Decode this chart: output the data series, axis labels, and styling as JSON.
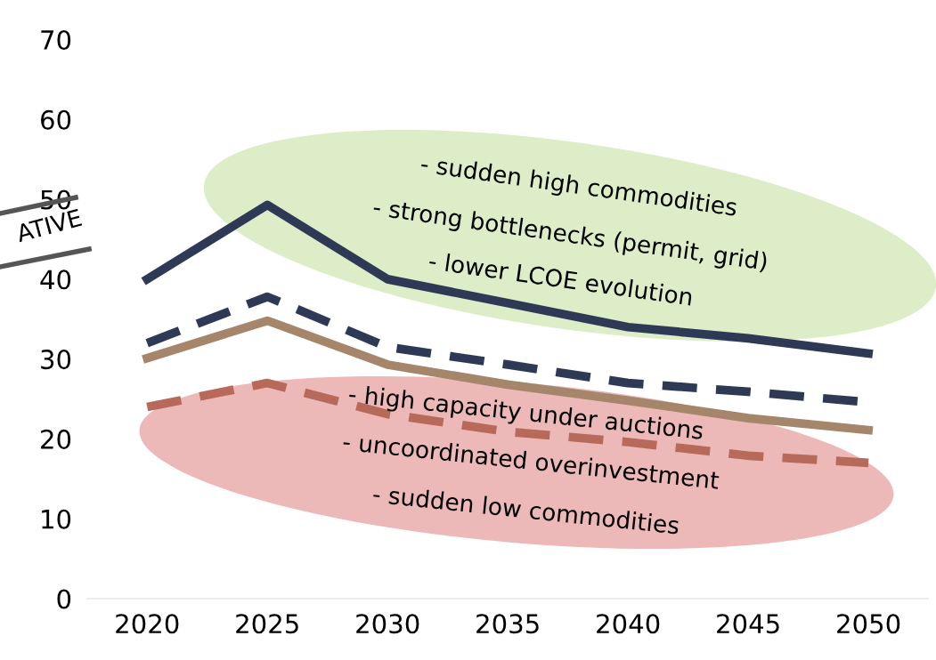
{
  "chart_data": {
    "type": "line",
    "categories": [
      "2020",
      "2025",
      "2030",
      "2035",
      "2040",
      "2045",
      "2050"
    ],
    "series": [
      {
        "color": "#2e3a55",
        "line_style": "solid",
        "values": [
          40,
          49.3,
          40,
          37,
          34,
          32.6,
          30.7
        ]
      },
      {
        "color": "#2e3a55",
        "line_style": "dashed",
        "values": [
          32,
          37.8,
          31.5,
          29.3,
          27,
          25.9,
          24.6
        ]
      },
      {
        "color": "#a5866a",
        "line_style": "solid",
        "values": [
          30.1,
          34.8,
          29.3,
          26.8,
          24.8,
          22.6,
          21.1
        ]
      },
      {
        "color": "#b86a5a",
        "line_style": "dashed",
        "values": [
          24,
          27,
          23.1,
          20.9,
          19.6,
          17.9,
          17
        ]
      }
    ],
    "ylim": [
      0,
      70
    ],
    "yticks": [
      0,
      10,
      20,
      30,
      40,
      50,
      60,
      70
    ],
    "grid": false,
    "legend": false,
    "marker": "none",
    "annotations": [
      "- sudden high commodities",
      "- strong bottlenecks (permit, grid)",
      "- lower LCOE evolution",
      "- high capacity under auctions",
      "- uncoordinated overinvestment",
      "- sudden low commodities",
      "ATIVE"
    ]
  }
}
